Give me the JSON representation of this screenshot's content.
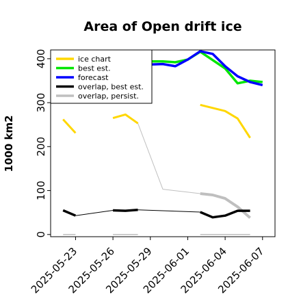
{
  "chart_data": {
    "type": "line",
    "title": "Area of Open drift ice",
    "xlabel": "",
    "ylabel": "1000 km2",
    "ylim": [
      -5,
      420
    ],
    "xlim": [
      "2025-05-21",
      "2025-06-08"
    ],
    "grid": false,
    "legend_position": "top-left",
    "y_ticks": [
      0,
      100,
      200,
      300,
      400
    ],
    "x_ticks": [
      "2025-05-23",
      "2025-05-26",
      "2025-05-29",
      "2025-06-01",
      "2025-06-04",
      "2025-06-07"
    ],
    "highlight_tick": "2025-05-29",
    "highlight_color": "#228b22",
    "series": [
      {
        "name": "ice chart",
        "color": "#ffd700",
        "segments": [
          [
            [
              "2025-05-22",
              262
            ],
            [
              "2025-05-23",
              231
            ]
          ],
          [
            [
              "2025-05-26",
              265
            ],
            [
              "2025-05-27",
              273
            ],
            [
              "2025-05-28",
              253
            ]
          ],
          [
            [
              "2025-06-02",
              295
            ],
            [
              "2025-06-04",
              281
            ],
            [
              "2025-06-05",
              264
            ],
            [
              "2025-06-06",
              220
            ]
          ]
        ]
      },
      {
        "name": "best est.",
        "color": "#00e600",
        "segments": [
          [
            [
              "2025-05-28",
              387
            ],
            [
              "2025-05-29",
              394
            ],
            [
              "2025-05-30",
              394
            ],
            [
              "2025-05-31",
              392
            ],
            [
              "2025-06-01",
              398
            ],
            [
              "2025-06-02",
              416
            ],
            [
              "2025-06-03",
              397
            ],
            [
              "2025-06-04",
              378
            ],
            [
              "2025-06-05",
              344
            ],
            [
              "2025-06-06",
              350
            ],
            [
              "2025-06-07",
              347
            ]
          ]
        ]
      },
      {
        "name": "forecast",
        "color": "#0000ff",
        "segments": [
          [
            [
              "2025-05-28",
              386
            ],
            [
              "2025-05-29",
              387
            ],
            [
              "2025-05-30",
              388
            ],
            [
              "2025-05-31",
              383
            ],
            [
              "2025-06-01",
              398
            ],
            [
              "2025-06-02",
              417
            ],
            [
              "2025-06-03",
              411
            ],
            [
              "2025-06-04",
              383
            ],
            [
              "2025-06-05",
              360
            ],
            [
              "2025-06-06",
              347
            ],
            [
              "2025-06-07",
              340
            ]
          ]
        ]
      },
      {
        "name": "overlap, best est.",
        "color": "#000000",
        "segments": [
          [
            [
              "2025-05-22",
              55
            ],
            [
              "2025-05-23",
              43
            ]
          ],
          [
            [
              "2025-05-23",
              43
            ],
            [
              "2025-05-26",
              55
            ]
          ],
          [
            [
              "2025-05-26",
              55
            ],
            [
              "2025-05-27",
              54
            ],
            [
              "2025-05-28",
              56
            ]
          ],
          [
            [
              "2025-05-28",
              56
            ],
            [
              "2025-06-02",
              51
            ]
          ],
          [
            [
              "2025-06-02",
              51
            ],
            [
              "2025-06-03",
              39
            ],
            [
              "2025-06-04",
              43
            ],
            [
              "2025-06-05",
              54
            ],
            [
              "2025-06-06",
              54
            ]
          ]
        ]
      },
      {
        "name": "overlap, persist.",
        "color": "#bfbfbf",
        "segments": [
          [
            [
              "2025-05-22",
              0
            ],
            [
              "2025-05-23",
              0
            ]
          ],
          [
            [
              "2025-05-26",
              0
            ],
            [
              "2025-05-28",
              0
            ]
          ],
          [
            [
              "2025-05-28",
              253
            ],
            [
              "2025-05-30",
              103
            ],
            [
              "2025-06-02",
              93
            ]
          ],
          [
            [
              "2025-06-02",
              93
            ],
            [
              "2025-06-03",
              90
            ],
            [
              "2025-06-04",
              82
            ],
            [
              "2025-06-05",
              63
            ],
            [
              "2025-06-06",
              38
            ]
          ],
          [
            [
              "2025-06-02",
              0
            ],
            [
              "2025-06-06",
              0
            ]
          ]
        ]
      }
    ]
  }
}
